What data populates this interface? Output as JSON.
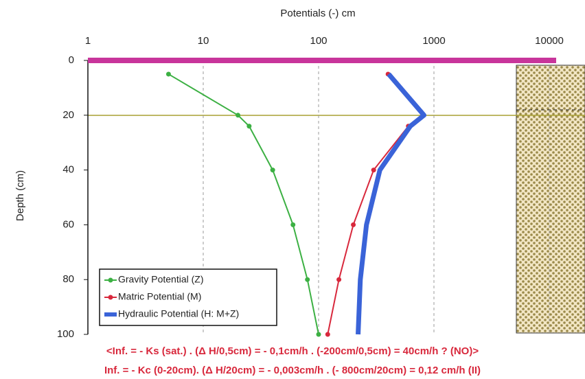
{
  "chart_data": {
    "type": "line",
    "title": "Potentials (-) cm",
    "y_label": "Depth (cm)",
    "xscale": "log",
    "xlim": [
      1,
      10000
    ],
    "xticks": [
      1,
      10,
      100,
      1000,
      10000
    ],
    "ylim": [
      0,
      100
    ],
    "yticks": [
      0,
      20,
      40,
      60,
      80,
      100
    ],
    "y_inverted": true,
    "grid": true,
    "series": [
      {
        "name": "Gravity Potential (Z)",
        "color": "#3cb043",
        "width": 2,
        "marker": true,
        "x": [
          5,
          20,
          25,
          40,
          60,
          80,
          100
        ],
        "y": [
          5,
          20,
          24,
          40,
          60,
          80,
          100
        ]
      },
      {
        "name": "Matric Potential (M)",
        "color": "#d8283c",
        "width": 2,
        "marker": true,
        "x": [
          400,
          800,
          600,
          300,
          200,
          150,
          120
        ],
        "y": [
          5,
          20,
          24,
          40,
          60,
          80,
          100
        ]
      },
      {
        "name": "Hydraulic Potential (H: M+Z)",
        "color": "#3a63d8",
        "width": 7,
        "marker": false,
        "x": [
          405,
          820,
          624,
          340,
          260,
          230,
          220
        ],
        "y": [
          5,
          20,
          24,
          40,
          60,
          80,
          100
        ]
      }
    ],
    "annotations": [
      "<Inf. = - Ks (sat.) . (Δ H/0,5cm) = - 0,1cm/h . (-200cm/0,5cm) = 40cm/h ? (NO)>",
      "Inf. = - Kc (0-20cm). (Δ H/20cm) = - 0,003cm/h . (- 800cm/20cm) = 0,12 cm/h  (II)"
    ]
  }
}
